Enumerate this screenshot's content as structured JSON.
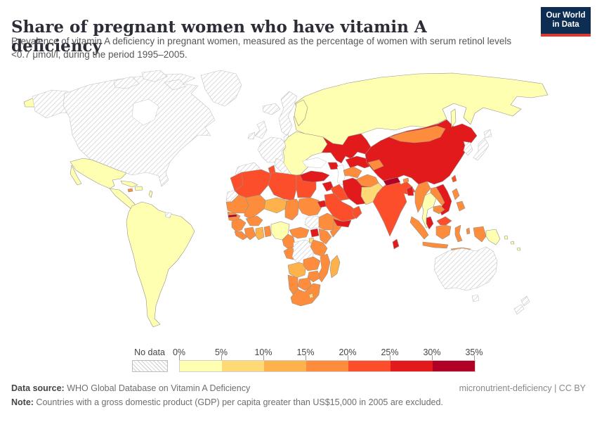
{
  "header": {
    "title": "Share of pregnant women who have vitamin A deficiency",
    "subtitle": "Prevalence of vitamin A deficiency in pregnant women, measured as the percentage of women with serum retinol levels <0.7 μmol/l, during the period 1995–2005.",
    "logo": {
      "line1": "Our World",
      "line2": "in Data"
    }
  },
  "colors": {
    "logo_navy": "#0d2e52",
    "logo_red": "#d63b31"
  },
  "legend": {
    "no_data_label": "No data",
    "tick_labels": [
      "0%",
      "5%",
      "10%",
      "15%",
      "20%",
      "25%",
      "30%",
      "35%"
    ]
  },
  "footer": {
    "data_source_label": "Data source:",
    "data_source_value": " WHO Global Database on Vitamin A Deficiency",
    "attribution": "micronutrient-deficiency | CC BY",
    "note_label": "Note:",
    "note_value": " Countries with a gross domestic product (GDP) per capita greater than US$15,000 in 2005 are excluded."
  },
  "chart_data": {
    "type": "choropleth",
    "title": "Share of pregnant women who have vitamin A deficiency",
    "unit": "% of pregnant women with serum retinol <0.7 μmol/l",
    "period": "1995–2005",
    "legend_bins": [
      {
        "range": "0-5%",
        "color": "#ffffb2"
      },
      {
        "range": "5-10%",
        "color": "#fed976"
      },
      {
        "range": "10-15%",
        "color": "#feb24c"
      },
      {
        "range": "15-20%",
        "color": "#fd8d3c"
      },
      {
        "range": "20-25%",
        "color": "#fc4e2a"
      },
      {
        "range": "25-30%",
        "color": "#e31a1c"
      },
      {
        "range": "30-35%",
        "color": "#b10026"
      }
    ],
    "no_data_style": "gray diagonal hatch",
    "regions": {
      "alaska": "no-data",
      "canada-usa": "no-data",
      "arctic-islands": "no-data",
      "greenland": "no-data",
      "iceland": "no-data",
      "united-kingdom": "no-data",
      "ireland": "no-data",
      "norway-sweden": "no-data",
      "denmark": "no-data",
      "western-europe": "no-data",
      "iberia": "no-data",
      "italy": "no-data",
      "western-sahara": "no-data",
      "french-guiana": "no-data",
      "dr-congo": "no-data",
      "south-sudan": "no-data",
      "korea": "no-data",
      "japan": "no-data",
      "australia": "no-data",
      "new-zealand": "no-data",
      "chukotka": "0-5%",
      "mexico": "0-5%",
      "central-america": "0-5%",
      "cuba": "0-5%",
      "hispaniola": "0-5%",
      "lesser-antilles": "0-5%",
      "south-america": "0-5%",
      "eastern-europe": "0-5%",
      "finland": "0-5%",
      "russia": "0-5%",
      "sakhalin": "0-5%",
      "thailand": "0-5%",
      "nigeria": "0-5%",
      "papua-new-guinea": "0-5%",
      "pacific-islands": "0-5%",
      "pakistan": "5-10%",
      "lesotho": "5-10%",
      "rwanda-burundi": "5-10%",
      "niger": "10-15%",
      "ghana": "10-15%",
      "angola": "10-15%",
      "madagascar": "10-15%",
      "mauritania": "15-20%",
      "mali": "15-20%",
      "chad": "15-20%",
      "senegal": "15-20%",
      "guinea": "15-20%",
      "sierra-leone-liberia": "15-20%",
      "ivory-coast": "15-20%",
      "togo-benin": "15-20%",
      "burkina-faso": "15-20%",
      "cameroon": "15-20%",
      "central-african-republic": "15-20%",
      "gabon-congo": "15-20%",
      "sudan": "15-20%",
      "ethiopia": "15-20%",
      "somalia": "15-20%",
      "kenya": "15-20%",
      "tanzania": "15-20%",
      "zambia": "15-20%",
      "malawi-mozambique": "15-20%",
      "zimbabwe": "15-20%",
      "botswana": "15-20%",
      "namibia": "15-20%",
      "south-africa": "15-20%",
      "jamaica": "15-20%",
      "afghanistan": "15-20%",
      "kyrgyzstan-tajikistan": "15-20%",
      "turkmenistan": "15-20%",
      "mongolia": "15-20%",
      "myanmar": "15-20%",
      "laos": "15-20%",
      "cambodia": "15-20%",
      "indonesia": "15-20%",
      "philippines": "15-20%",
      "bhutan": "15-20%",
      "morocco": "20-25%",
      "algeria": "20-25%",
      "tunisia": "20-25%",
      "libya": "20-25%",
      "egypt": "20-25%",
      "saudi-arabia": "20-25%",
      "oman": "20-25%",
      "iraq": "20-25%",
      "india": "20-25%",
      "taiwan": "20-25%",
      "east-malaysia": "20-25%",
      "turkey": "25-30%",
      "syria": "25-30%",
      "iran": "25-30%",
      "caucasus": "25-30%",
      "kazakhstan": "25-30%",
      "uzbekistan": "25-30%",
      "china": "25-30%",
      "yemen": "25-30%",
      "eritrea": "25-30%",
      "uganda": "25-30%",
      "sri-lanka": "25-30%",
      "vietnam": "25-30%",
      "bangladesh": "25-30%",
      "malaysia": "25-30%",
      "nepal": "30-35%",
      "gambia": "30-35%"
    }
  }
}
